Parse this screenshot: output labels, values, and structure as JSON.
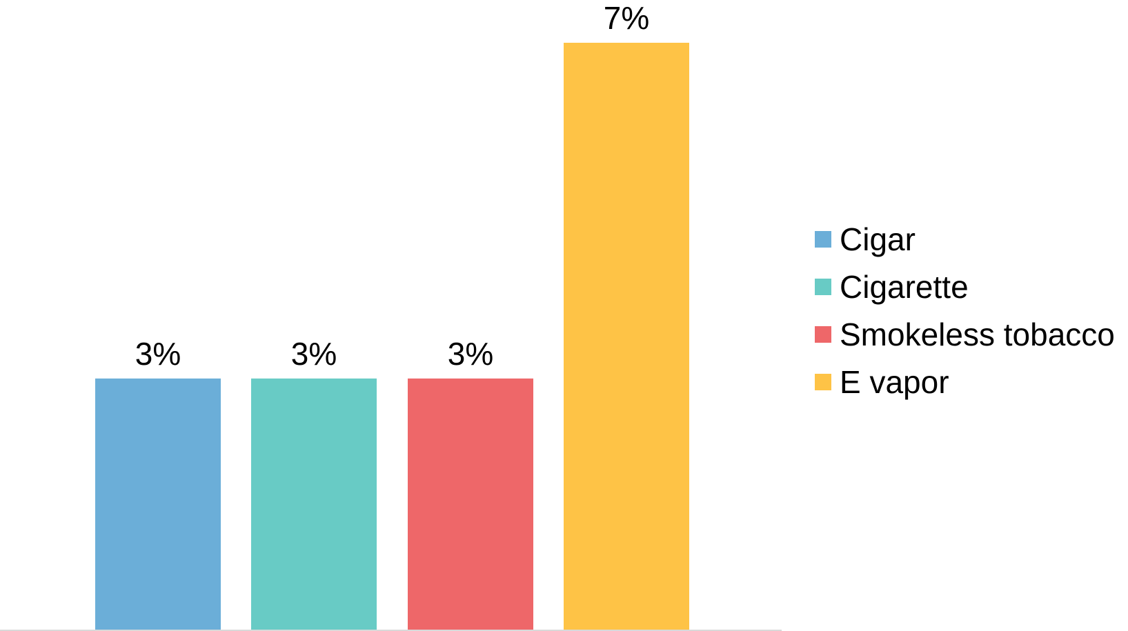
{
  "chart_data": {
    "type": "bar",
    "title": "",
    "xlabel": "",
    "ylabel": "",
    "ylim": [
      0,
      7.5
    ],
    "grid": false,
    "legend_position": "right",
    "categories": [
      "Cigar",
      "Cigarette",
      "Smokeless tobacco",
      "E vapor"
    ],
    "values": [
      3,
      3,
      3,
      7
    ],
    "data_labels": [
      "3%",
      "3%",
      "3%",
      "7%"
    ],
    "colors": [
      "#6baed8",
      "#68cbc5",
      "#ee6769",
      "#fec346"
    ],
    "legend": [
      {
        "label": "Cigar",
        "color": "#6baed8"
      },
      {
        "label": "Cigarette",
        "color": "#68cbc5"
      },
      {
        "label": "Smokeless tobacco",
        "color": "#ee6769"
      },
      {
        "label": "E vapor",
        "color": "#fec346"
      }
    ]
  }
}
